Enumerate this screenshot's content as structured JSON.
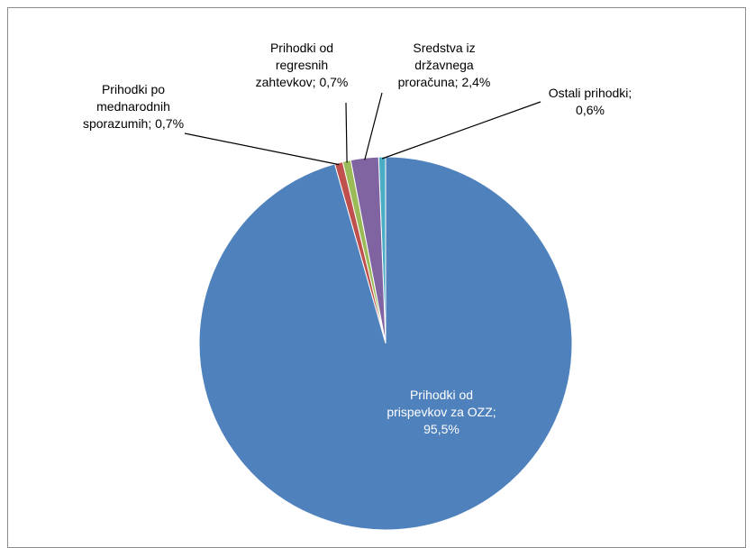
{
  "chart_data": {
    "type": "pie",
    "title": "",
    "slices": [
      {
        "name": "Prihodki od prispevkov za OZZ",
        "value": 95.5,
        "color": "#4F81BD",
        "label_lines": [
          "Prihodki od",
          "prispevkov za OZZ;",
          "95,5%"
        ]
      },
      {
        "name": "Prihodki po mednarodnih sporazumih",
        "value": 0.7,
        "color": "#C0504D",
        "label_lines": [
          "Prihodki po",
          "mednarodnih",
          "sporazumih; 0,7%"
        ]
      },
      {
        "name": "Prihodki od regresnih zahtevkov",
        "value": 0.7,
        "color": "#9BBB59",
        "label_lines": [
          "Prihodki od",
          "regresnih",
          "zahtevkov; 0,7%"
        ]
      },
      {
        "name": "Sredstva iz državnega proračuna",
        "value": 2.4,
        "color": "#8064A2",
        "label_lines": [
          "Sredstva iz",
          "državnega",
          "proračuna; 2,4%"
        ]
      },
      {
        "name": "Ostali prihodki",
        "value": 0.6,
        "color": "#4BACC6",
        "label_lines": [
          "Ostali prihodki;",
          "0,6%"
        ]
      }
    ],
    "legend": "none",
    "label_position": "outside with leader lines (largest slice inside)"
  }
}
